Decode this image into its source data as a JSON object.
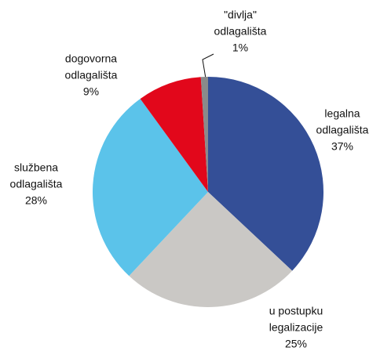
{
  "chart_data": {
    "type": "pie",
    "categories": [
      [
        "legalna",
        "odlagališta"
      ],
      [
        "u postupku",
        "legalizacije"
      ],
      [
        "službena",
        "odlagališta"
      ],
      [
        "dogovorna",
        "odlagališta"
      ],
      [
        "\"divlja\"",
        "odlagališta"
      ]
    ],
    "values": [
      37,
      25,
      28,
      9,
      1
    ],
    "value_labels": [
      "37%",
      "25%",
      "28%",
      "9%",
      "1%"
    ],
    "colors": [
      "#344f97",
      "#cac8c5",
      "#5bc3ea",
      "#e2071b",
      "#8a8a8a"
    ]
  }
}
